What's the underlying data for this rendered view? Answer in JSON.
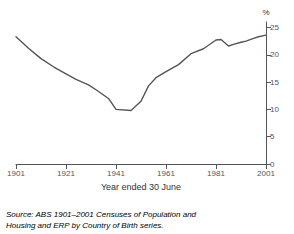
{
  "chart_data": {
    "type": "line",
    "x_label": "Year ended 30 June",
    "y_label": "%",
    "annotations": [
      "Source: ABS 1901–2001 Censuses of Population and\nHousing and ERP by Country of Birth series."
    ],
    "x": [
      1901,
      1906,
      1911,
      1916,
      1921,
      1925,
      1930,
      1933,
      1938,
      1941,
      1947,
      1951,
      1954,
      1957,
      1961,
      1966,
      1971,
      1976,
      1981,
      1983,
      1986,
      1988,
      1991,
      1993,
      1996,
      1998,
      2001
    ],
    "values": [
      23.3,
      21.2,
      19.3,
      17.8,
      16.5,
      15.5,
      14.5,
      13.6,
      12.0,
      10.0,
      9.8,
      11.5,
      14.3,
      15.8,
      16.9,
      18.2,
      20.2,
      21.1,
      22.7,
      22.8,
      21.6,
      21.9,
      22.3,
      22.5,
      23.0,
      23.3,
      23.6
    ],
    "xlim": [
      1901,
      2001
    ],
    "xticks": [
      1901,
      1921,
      1941,
      1961,
      1981,
      2001
    ],
    "ylim": [
      0,
      26
    ],
    "yticks": [
      0,
      5,
      10,
      15,
      20,
      25
    ],
    "color": "#555555",
    "grid": false
  }
}
